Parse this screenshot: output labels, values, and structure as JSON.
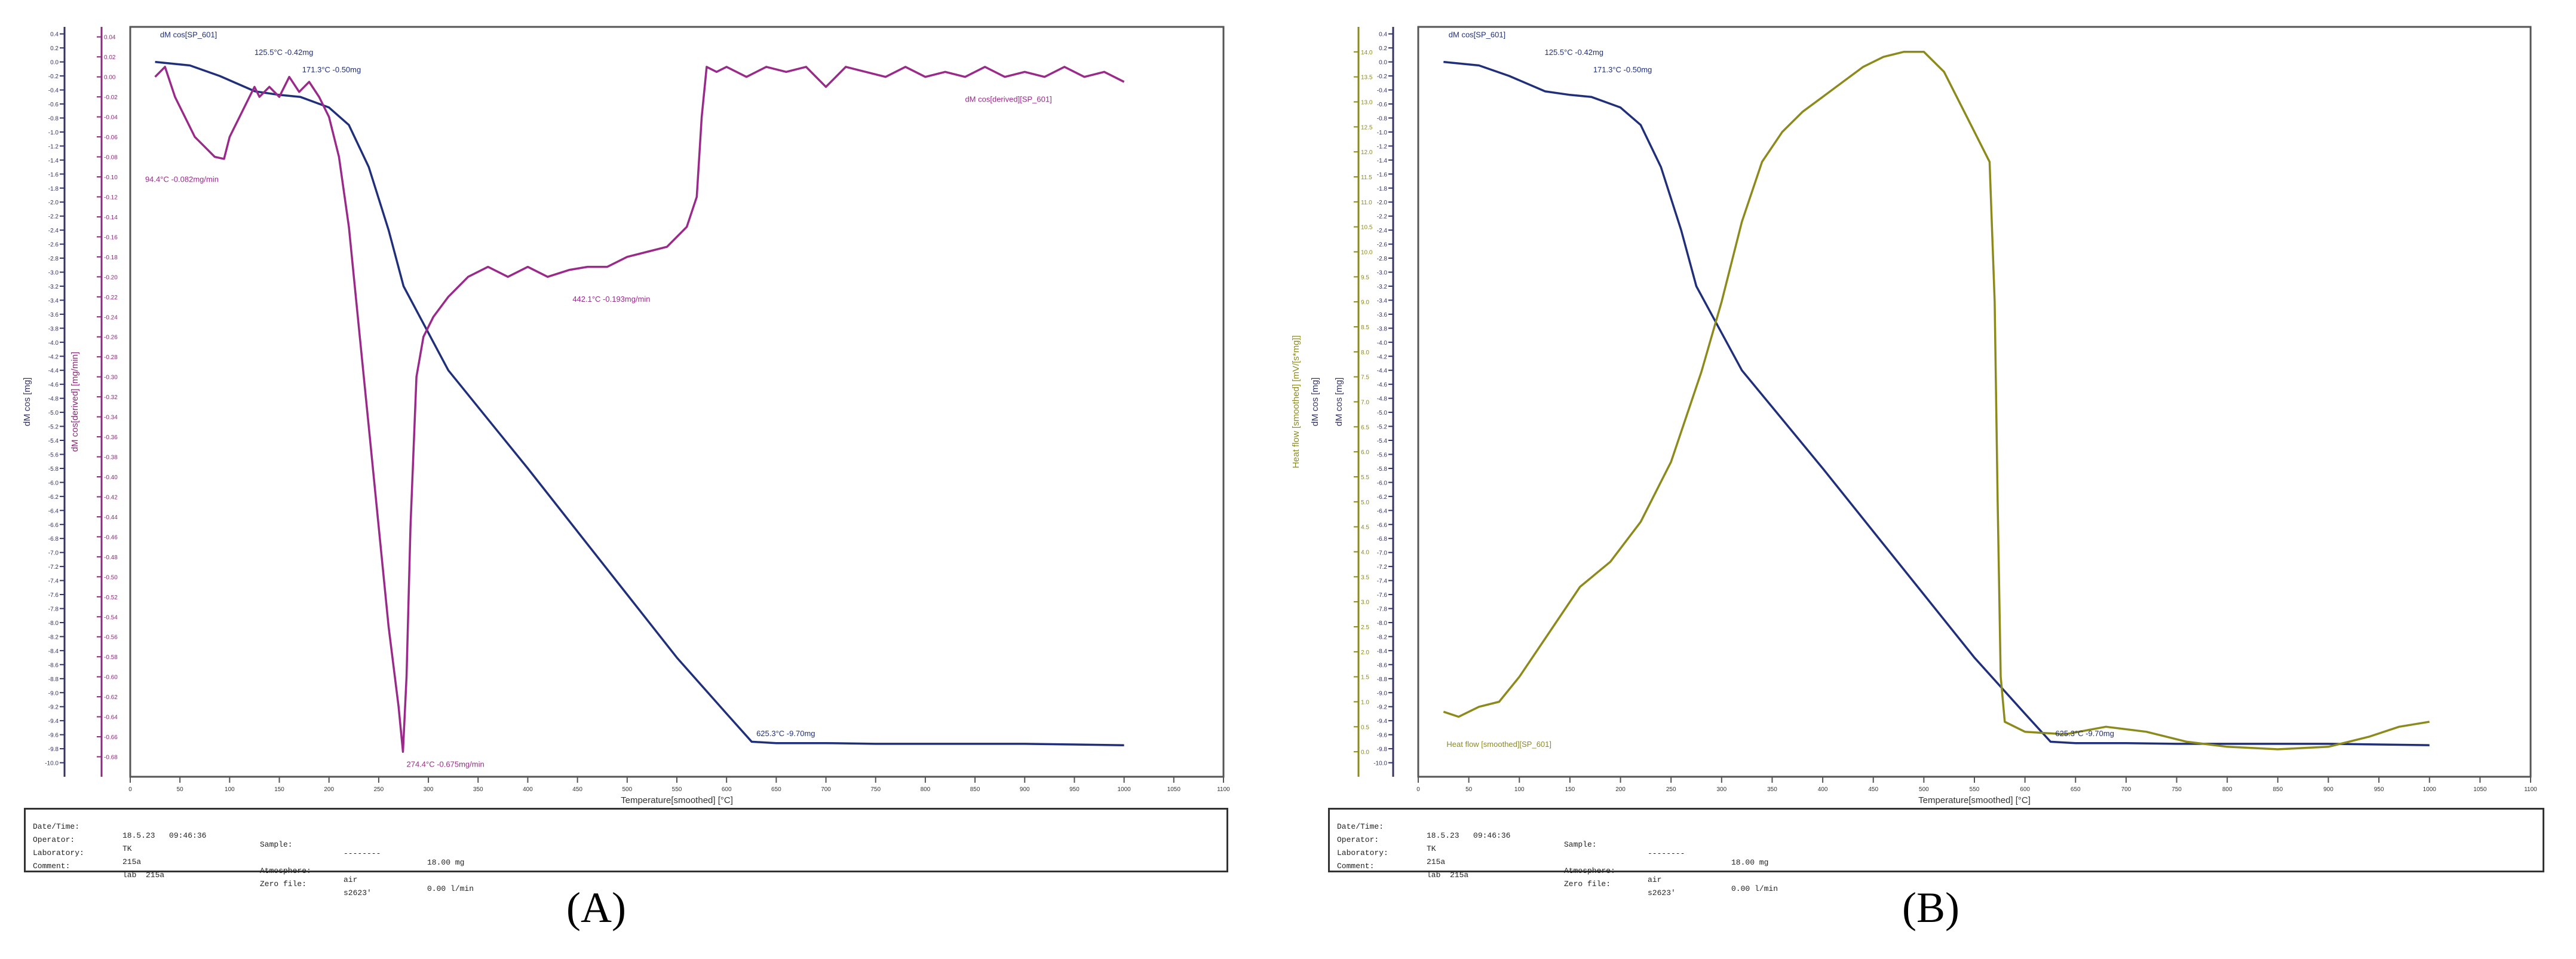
{
  "colors": {
    "mass": "#1f2f7a",
    "derivative": "#9a2a8a",
    "heatflow": "#8c8a1c",
    "axis_left": "#333366",
    "axis_deriv": "#8a2a7a",
    "axis_heat": "#8c8a1c",
    "frame": "#555555"
  },
  "chart_data": [
    {
      "type": "line",
      "panel_label": "A",
      "xlabel": "Temperature[smoothed] [°C]",
      "ylabel": "dM cos [mg]",
      "ylabel2": "dM cos[derived] [mg/min]",
      "xlim": [
        0,
        1100
      ],
      "ylim": [
        -10.2,
        0.5
      ],
      "ylim2": [
        -0.7,
        0.05
      ],
      "x_ticks": [
        "0",
        "50",
        "100",
        "150",
        "200",
        "250",
        "300",
        "350",
        "400",
        "450",
        "500",
        "550",
        "600",
        "650",
        "700",
        "750",
        "800",
        "850",
        "900",
        "950",
        "1000",
        "1050",
        "1100"
      ],
      "y_ticks": [
        "0.4",
        "0.2",
        "0.0",
        "-0.2",
        "-0.4",
        "-0.6",
        "-0.8",
        "-1.0",
        "-1.2",
        "-1.4",
        "-1.6",
        "-1.8",
        "-2.0",
        "-2.2",
        "-2.4",
        "-2.6",
        "-2.8",
        "-3.0",
        "-3.2",
        "-3.4",
        "-3.6",
        "-3.8",
        "-4.0",
        "-4.2",
        "-4.4",
        "-4.6",
        "-4.8",
        "-5.0",
        "-5.2",
        "-5.4",
        "-5.6",
        "-5.8",
        "-6.0",
        "-6.2",
        "-6.4",
        "-6.6",
        "-6.8",
        "-7.0",
        "-7.2",
        "-7.4",
        "-7.6",
        "-7.8",
        "-8.0",
        "-8.2",
        "-8.4",
        "-8.6",
        "-8.8",
        "-9.0",
        "-9.2",
        "-9.4",
        "-9.6",
        "-9.8",
        "-10.0"
      ],
      "y2_ticks": [
        "0.04",
        "0.02",
        "0.00",
        "-0.02",
        "-0.04",
        "-0.06",
        "-0.08",
        "-0.10",
        "-0.12",
        "-0.14",
        "-0.16",
        "-0.18",
        "-0.20",
        "-0.22",
        "-0.24",
        "-0.26",
        "-0.28",
        "-0.30",
        "-0.32",
        "-0.34",
        "-0.36",
        "-0.38",
        "-0.40",
        "-0.42",
        "-0.44",
        "-0.46",
        "-0.48",
        "-0.50",
        "-0.52",
        "-0.54",
        "-0.56",
        "-0.58",
        "-0.60",
        "-0.62",
        "-0.64",
        "-0.66",
        "-0.68"
      ],
      "grid": false,
      "series": [
        {
          "name": "dM cos[SP_601]",
          "color_key": "mass",
          "axis": "left",
          "points": [
            [
              25,
              0.0
            ],
            [
              60,
              -0.05
            ],
            [
              90,
              -0.2
            ],
            [
              125.5,
              -0.42
            ],
            [
              150,
              -0.47
            ],
            [
              171.3,
              -0.5
            ],
            [
              200,
              -0.65
            ],
            [
              220,
              -0.9
            ],
            [
              240,
              -1.5
            ],
            [
              260,
              -2.4
            ],
            [
              275,
              -3.2
            ],
            [
              290,
              -3.6
            ],
            [
              320,
              -4.4
            ],
            [
              360,
              -5.1
            ],
            [
              400,
              -5.8
            ],
            [
              450,
              -6.7
            ],
            [
              500,
              -7.6
            ],
            [
              550,
              -8.5
            ],
            [
              600,
              -9.3
            ],
            [
              625.3,
              -9.7
            ],
            [
              650,
              -9.72
            ],
            [
              700,
              -9.72
            ],
            [
              750,
              -9.73
            ],
            [
              800,
              -9.73
            ],
            [
              850,
              -9.73
            ],
            [
              900,
              -9.73
            ],
            [
              950,
              -9.74
            ],
            [
              1000,
              -9.75
            ]
          ]
        },
        {
          "name": "dM cos[derived][SP_601]",
          "color_key": "derivative",
          "axis": "right",
          "points": [
            [
              25,
              0.0
            ],
            [
              35,
              0.01
            ],
            [
              45,
              -0.02
            ],
            [
              55,
              -0.04
            ],
            [
              65,
              -0.06
            ],
            [
              75,
              -0.07
            ],
            [
              85,
              -0.08
            ],
            [
              94.4,
              -0.082
            ],
            [
              100,
              -0.06
            ],
            [
              110,
              -0.04
            ],
            [
              120,
              -0.02
            ],
            [
              125,
              -0.01
            ],
            [
              130,
              -0.02
            ],
            [
              140,
              -0.01
            ],
            [
              150,
              -0.02
            ],
            [
              160,
              -0.0
            ],
            [
              170,
              -0.015
            ],
            [
              180,
              -0.005
            ],
            [
              190,
              -0.02
            ],
            [
              200,
              -0.04
            ],
            [
              210,
              -0.08
            ],
            [
              220,
              -0.15
            ],
            [
              230,
              -0.25
            ],
            [
              240,
              -0.35
            ],
            [
              250,
              -0.45
            ],
            [
              260,
              -0.55
            ],
            [
              270,
              -0.63
            ],
            [
              274.4,
              -0.675
            ],
            [
              278,
              -0.6
            ],
            [
              282,
              -0.45
            ],
            [
              288,
              -0.3
            ],
            [
              295,
              -0.26
            ],
            [
              305,
              -0.24
            ],
            [
              320,
              -0.22
            ],
            [
              340,
              -0.2
            ],
            [
              360,
              -0.19
            ],
            [
              380,
              -0.2
            ],
            [
              400,
              -0.19
            ],
            [
              420,
              -0.2
            ],
            [
              442.1,
              -0.193
            ],
            [
              460,
              -0.19
            ],
            [
              480,
              -0.19
            ],
            [
              500,
              -0.18
            ],
            [
              520,
              -0.175
            ],
            [
              540,
              -0.17
            ],
            [
              560,
              -0.15
            ],
            [
              570,
              -0.12
            ],
            [
              575,
              -0.04
            ],
            [
              580,
              0.01
            ],
            [
              590,
              0.005
            ],
            [
              600,
              0.01
            ],
            [
              620,
              0.0
            ],
            [
              640,
              0.01
            ],
            [
              660,
              0.005
            ],
            [
              680,
              0.01
            ],
            [
              700,
              -0.01
            ],
            [
              720,
              0.01
            ],
            [
              740,
              0.005
            ],
            [
              760,
              0.0
            ],
            [
              780,
              0.01
            ],
            [
              800,
              0.0
            ],
            [
              820,
              0.005
            ],
            [
              840,
              0.0
            ],
            [
              860,
              0.01
            ],
            [
              880,
              0.0
            ],
            [
              900,
              0.005
            ],
            [
              920,
              0.0
            ],
            [
              940,
              0.01
            ],
            [
              960,
              0.0
            ],
            [
              980,
              0.005
            ],
            [
              1000,
              -0.005
            ]
          ]
        }
      ],
      "annotations": [
        {
          "text": "dM cos[SP_601]",
          "x": 30,
          "y": 0.35,
          "color_key": "mass",
          "axis": "left"
        },
        {
          "text": "125.5°C  -0.42mg",
          "x": 125,
          "y": 0.1,
          "color_key": "mass",
          "axis": "left"
        },
        {
          "text": "171.3°C  -0.50mg",
          "x": 173,
          "y": -0.15,
          "color_key": "mass",
          "axis": "left"
        },
        {
          "text": "94.4°C  -0.082mg/min",
          "x": 15,
          "y": -0.105,
          "color_key": "derivative",
          "axis": "right"
        },
        {
          "text": "dM cos[derived][SP_601]",
          "x": 840,
          "y": -0.025,
          "color_key": "derivative",
          "axis": "right"
        },
        {
          "text": "442.1°C  -0.193mg/min",
          "x": 445,
          "y": -0.225,
          "color_key": "derivative",
          "axis": "right"
        },
        {
          "text": "274.4°C  -0.675mg/min",
          "x": 278,
          "y": -0.69,
          "color_key": "derivative",
          "axis": "right"
        },
        {
          "text": "625.3°C  -9.70mg",
          "x": 630,
          "y": -9.62,
          "color_key": "mass",
          "axis": "left"
        }
      ]
    },
    {
      "type": "line",
      "panel_label": "B",
      "xlabel": "Temperature[smoothed] [°C]",
      "ylabel": "dM cos [mg]",
      "ylabel2": "Heat flow [smoothed] [mV/[s*mg]]",
      "xlim": [
        0,
        1100
      ],
      "ylim": [
        -10.2,
        0.5
      ],
      "ylim2": [
        -0.5,
        14.5
      ],
      "x_ticks": [
        "0",
        "50",
        "100",
        "150",
        "200",
        "250",
        "300",
        "350",
        "400",
        "450",
        "500",
        "550",
        "600",
        "650",
        "700",
        "750",
        "800",
        "850",
        "900",
        "950",
        "1000",
        "1050",
        "1100"
      ],
      "y_ticks": [
        "0.4",
        "0.2",
        "0.0",
        "-0.2",
        "-0.4",
        "-0.6",
        "-0.8",
        "-1.0",
        "-1.2",
        "-1.4",
        "-1.6",
        "-1.8",
        "-2.0",
        "-2.2",
        "-2.4",
        "-2.6",
        "-2.8",
        "-3.0",
        "-3.2",
        "-3.4",
        "-3.6",
        "-3.8",
        "-4.0",
        "-4.2",
        "-4.4",
        "-4.6",
        "-4.8",
        "-5.0",
        "-5.2",
        "-5.4",
        "-5.6",
        "-5.8",
        "-6.0",
        "-6.2",
        "-6.4",
        "-6.6",
        "-6.8",
        "-7.0",
        "-7.2",
        "-7.4",
        "-7.6",
        "-7.8",
        "-8.0",
        "-8.2",
        "-8.4",
        "-8.6",
        "-8.8",
        "-9.0",
        "-9.2",
        "-9.4",
        "-9.6",
        "-9.8",
        "-10.0"
      ],
      "y2_ticks": [
        "14.0",
        "13.5",
        "13.0",
        "12.5",
        "12.0",
        "11.5",
        "11.0",
        "10.5",
        "10.0",
        "9.5",
        "9.0",
        "8.5",
        "8.0",
        "7.5",
        "7.0",
        "6.5",
        "6.0",
        "5.5",
        "5.0",
        "4.5",
        "4.0",
        "3.5",
        "3.0",
        "2.5",
        "2.0",
        "1.5",
        "1.0",
        "0.5",
        "0.0"
      ],
      "grid": false,
      "series": [
        {
          "name": "dM cos[SP_601]",
          "color_key": "mass",
          "axis": "left",
          "points": [
            [
              25,
              0.0
            ],
            [
              60,
              -0.05
            ],
            [
              90,
              -0.2
            ],
            [
              125.5,
              -0.42
            ],
            [
              150,
              -0.47
            ],
            [
              171.3,
              -0.5
            ],
            [
              200,
              -0.65
            ],
            [
              220,
              -0.9
            ],
            [
              240,
              -1.5
            ],
            [
              260,
              -2.4
            ],
            [
              275,
              -3.2
            ],
            [
              290,
              -3.6
            ],
            [
              320,
              -4.4
            ],
            [
              360,
              -5.1
            ],
            [
              400,
              -5.8
            ],
            [
              450,
              -6.7
            ],
            [
              500,
              -7.6
            ],
            [
              550,
              -8.5
            ],
            [
              600,
              -9.3
            ],
            [
              625.3,
              -9.7
            ],
            [
              650,
              -9.72
            ],
            [
              700,
              -9.72
            ],
            [
              750,
              -9.73
            ],
            [
              800,
              -9.73
            ],
            [
              850,
              -9.73
            ],
            [
              900,
              -9.73
            ],
            [
              950,
              -9.74
            ],
            [
              1000,
              -9.75
            ]
          ]
        },
        {
          "name": "Heat flow [smoothed][SP_601]",
          "color_key": "heatflow",
          "axis": "right",
          "points": [
            [
              25,
              0.8
            ],
            [
              40,
              0.7
            ],
            [
              60,
              0.9
            ],
            [
              80,
              1.0
            ],
            [
              100,
              1.5
            ],
            [
              130,
              2.4
            ],
            [
              160,
              3.3
            ],
            [
              190,
              3.8
            ],
            [
              220,
              4.6
            ],
            [
              250,
              5.8
            ],
            [
              280,
              7.6
            ],
            [
              300,
              9.0
            ],
            [
              320,
              10.6
            ],
            [
              340,
              11.8
            ],
            [
              360,
              12.4
            ],
            [
              380,
              12.8
            ],
            [
              400,
              13.1
            ],
            [
              420,
              13.4
            ],
            [
              440,
              13.7
            ],
            [
              460,
              13.9
            ],
            [
              480,
              14.0
            ],
            [
              500,
              14.0
            ],
            [
              520,
              13.6
            ],
            [
              540,
              12.8
            ],
            [
              555,
              12.2
            ],
            [
              565,
              11.8
            ],
            [
              570,
              9.0
            ],
            [
              573,
              5.0
            ],
            [
              576,
              1.5
            ],
            [
              580,
              0.6
            ],
            [
              600,
              0.4
            ],
            [
              640,
              0.35
            ],
            [
              680,
              0.5
            ],
            [
              720,
              0.4
            ],
            [
              760,
              0.2
            ],
            [
              800,
              0.1
            ],
            [
              850,
              0.05
            ],
            [
              900,
              0.1
            ],
            [
              940,
              0.3
            ],
            [
              970,
              0.5
            ],
            [
              1000,
              0.6
            ]
          ]
        }
      ],
      "annotations": [
        {
          "text": "dM cos[SP_601]",
          "x": 30,
          "y": 0.35,
          "color_key": "mass",
          "axis": "left"
        },
        {
          "text": "125.5°C  -0.42mg",
          "x": 125,
          "y": 0.1,
          "color_key": "mass",
          "axis": "left"
        },
        {
          "text": "171.3°C  -0.50mg",
          "x": 173,
          "y": -0.15,
          "color_key": "mass",
          "axis": "left"
        },
        {
          "text": "Heat flow [smoothed][SP_601]",
          "x": 28,
          "y": 0.1,
          "color_key": "heatflow",
          "axis": "right"
        },
        {
          "text": "625.3°C  -9.70mg",
          "x": 630,
          "y": -9.62,
          "color_key": "mass",
          "axis": "left"
        }
      ]
    }
  ],
  "info_panel": {
    "row1": {
      "label": "Date/Time:",
      "value": "18.5.23   09:46:36",
      "label2": "Sample:",
      "value2": "--------",
      "value3": "18.00 mg"
    },
    "row2": {
      "label": "Operator:",
      "value": "TK"
    },
    "row3": {
      "label": "Laboratory:",
      "value": "215a",
      "label2": "Atmosphere:",
      "value2": "air",
      "value3": "0.00 l/min"
    },
    "row4": {
      "label": "Comment:",
      "value": "lab  215a",
      "label2": "Zero file:",
      "value2": "s2623'"
    }
  },
  "panel_labels": {
    "a": "(A)",
    "b": "(B)"
  }
}
